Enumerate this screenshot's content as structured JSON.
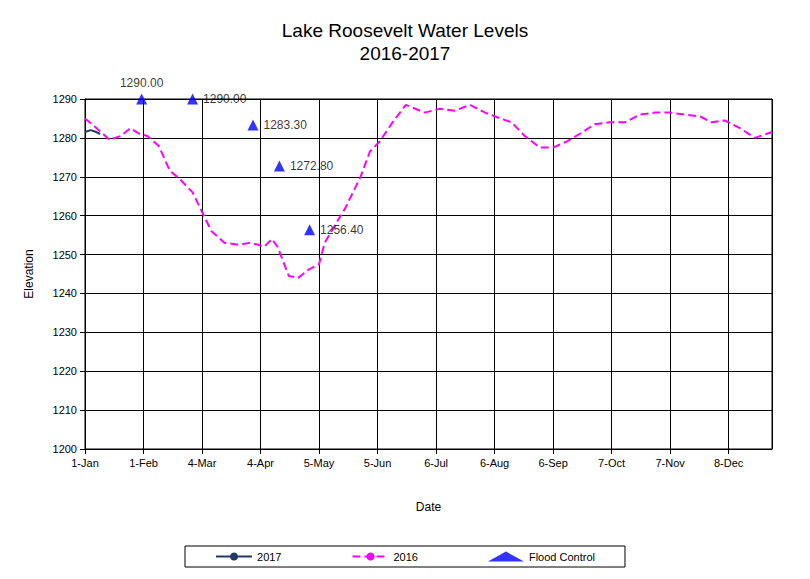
{
  "chart_data": {
    "type": "line",
    "title": "Lake Roosevelt Water Levels",
    "subtitle": "2016-2017",
    "x_label": "Date",
    "y_label": "Elevation",
    "xlim": [
      0,
      364
    ],
    "xticks": [
      {
        "value": 0,
        "label": "1-Jan"
      },
      {
        "value": 31,
        "label": "1-Feb"
      },
      {
        "value": 62,
        "label": "4-Mar"
      },
      {
        "value": 93,
        "label": "4-Apr"
      },
      {
        "value": 124,
        "label": "5-May"
      },
      {
        "value": 155,
        "label": "5-Jun"
      },
      {
        "value": 186,
        "label": "6-Jul"
      },
      {
        "value": 217,
        "label": "6-Aug"
      },
      {
        "value": 248,
        "label": "6-Sep"
      },
      {
        "value": 279,
        "label": "7-Oct"
      },
      {
        "value": 310,
        "label": "7-Nov"
      },
      {
        "value": 341,
        "label": "8-Dec"
      }
    ],
    "ylim": [
      1200,
      1290
    ],
    "yticks": [
      1200,
      1210,
      1220,
      1230,
      1240,
      1250,
      1260,
      1270,
      1280,
      1290
    ],
    "grid": true,
    "legend": "bottom",
    "series": [
      {
        "name": "2017",
        "type": "line",
        "color": "#1f3864",
        "line_style": "solid",
        "x": [
          0,
          3,
          6,
          8
        ],
        "values": [
          1281.5,
          1282,
          1281.5,
          1281
        ]
      },
      {
        "name": "2016",
        "type": "line",
        "color": "#ff00ff",
        "line_style": "dashed",
        "x": [
          0,
          5,
          13,
          19,
          24,
          29,
          33,
          39,
          45,
          50,
          57,
          61,
          67,
          74,
          82,
          87,
          92,
          95,
          99,
          102,
          108,
          113,
          118,
          124,
          127,
          133,
          138,
          146,
          151,
          156,
          163,
          170,
          175,
          180,
          188,
          196,
          204,
          212,
          220,
          226,
          233,
          241,
          248,
          255,
          262,
          270,
          278,
          286,
          294,
          302,
          310,
          318,
          326,
          332,
          339,
          347,
          355,
          361,
          364
        ],
        "values": [
          1285,
          1283,
          1279.5,
          1280.5,
          1282.5,
          1281,
          1280.5,
          1278,
          1271.5,
          1269.5,
          1266,
          1262,
          1256,
          1253,
          1252.5,
          1253,
          1252.5,
          1252,
          1254,
          1252,
          1244.5,
          1244,
          1246,
          1247.5,
          1253,
          1258,
          1262,
          1270,
          1276.5,
          1279,
          1284,
          1288.5,
          1287.5,
          1286.5,
          1287.5,
          1287,
          1288.5,
          1286.5,
          1285,
          1284,
          1280.5,
          1277.5,
          1277.5,
          1279,
          1281,
          1283.5,
          1284,
          1284,
          1286,
          1286.5,
          1286.5,
          1286,
          1285.5,
          1284,
          1284.5,
          1282.5,
          1280,
          1281,
          1281.5
        ]
      },
      {
        "name": "Flood Control",
        "type": "scatter",
        "color": "#0000ff",
        "marker": "triangle",
        "x": [
          30,
          57,
          89,
          103,
          119
        ],
        "values": [
          1290,
          1290,
          1283.3,
          1272.8,
          1256.4
        ],
        "value_labels": [
          "1290.00",
          "1290.00",
          "1283.30",
          "1272.80",
          "1256.40"
        ],
        "data_labels": true
      }
    ]
  }
}
